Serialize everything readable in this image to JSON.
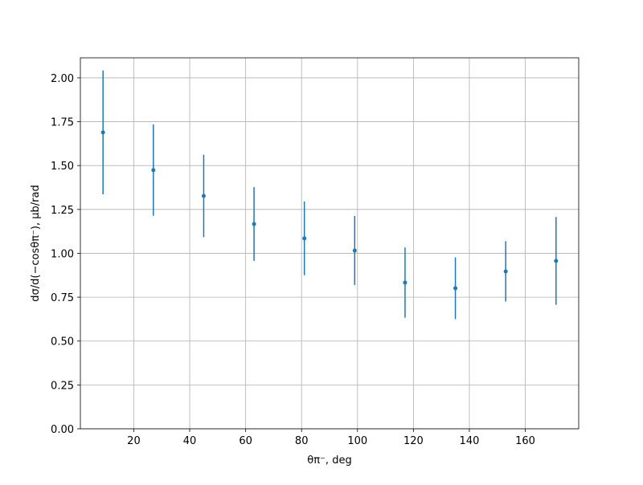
{
  "chart_data": {
    "type": "errorbar",
    "x_label": "θπ⁻, deg",
    "y_label": "dσ/d(−cosθπ⁻), μb/rad",
    "x": [
      9,
      27,
      45,
      63,
      81,
      99,
      117,
      135,
      153,
      171
    ],
    "values": [
      1.689,
      1.474,
      1.327,
      1.167,
      1.085,
      1.016,
      0.833,
      0.801,
      0.897,
      0.957
    ],
    "errors": [
      0.353,
      0.26,
      0.235,
      0.21,
      0.21,
      0.197,
      0.2,
      0.176,
      0.172,
      0.25
    ],
    "color": "#1f77b4",
    "xlim": [
      0.9,
      179.1
    ],
    "ylim": [
      0,
      2.114
    ],
    "xticks": [
      20,
      40,
      60,
      80,
      100,
      120,
      140,
      160
    ],
    "yticks": [
      {
        "value": 0,
        "label": "0.00"
      },
      {
        "value": 0.25,
        "label": "0.25"
      },
      {
        "value": 0.5,
        "label": "0.50"
      },
      {
        "value": 0.75,
        "label": "0.75"
      },
      {
        "value": 1,
        "label": "1.00"
      },
      {
        "value": 1.25,
        "label": "1.25"
      },
      {
        "value": 1.5,
        "label": "1.50"
      },
      {
        "value": 1.75,
        "label": "1.75"
      },
      {
        "value": 2,
        "label": "2.00"
      }
    ],
    "grid": true
  }
}
